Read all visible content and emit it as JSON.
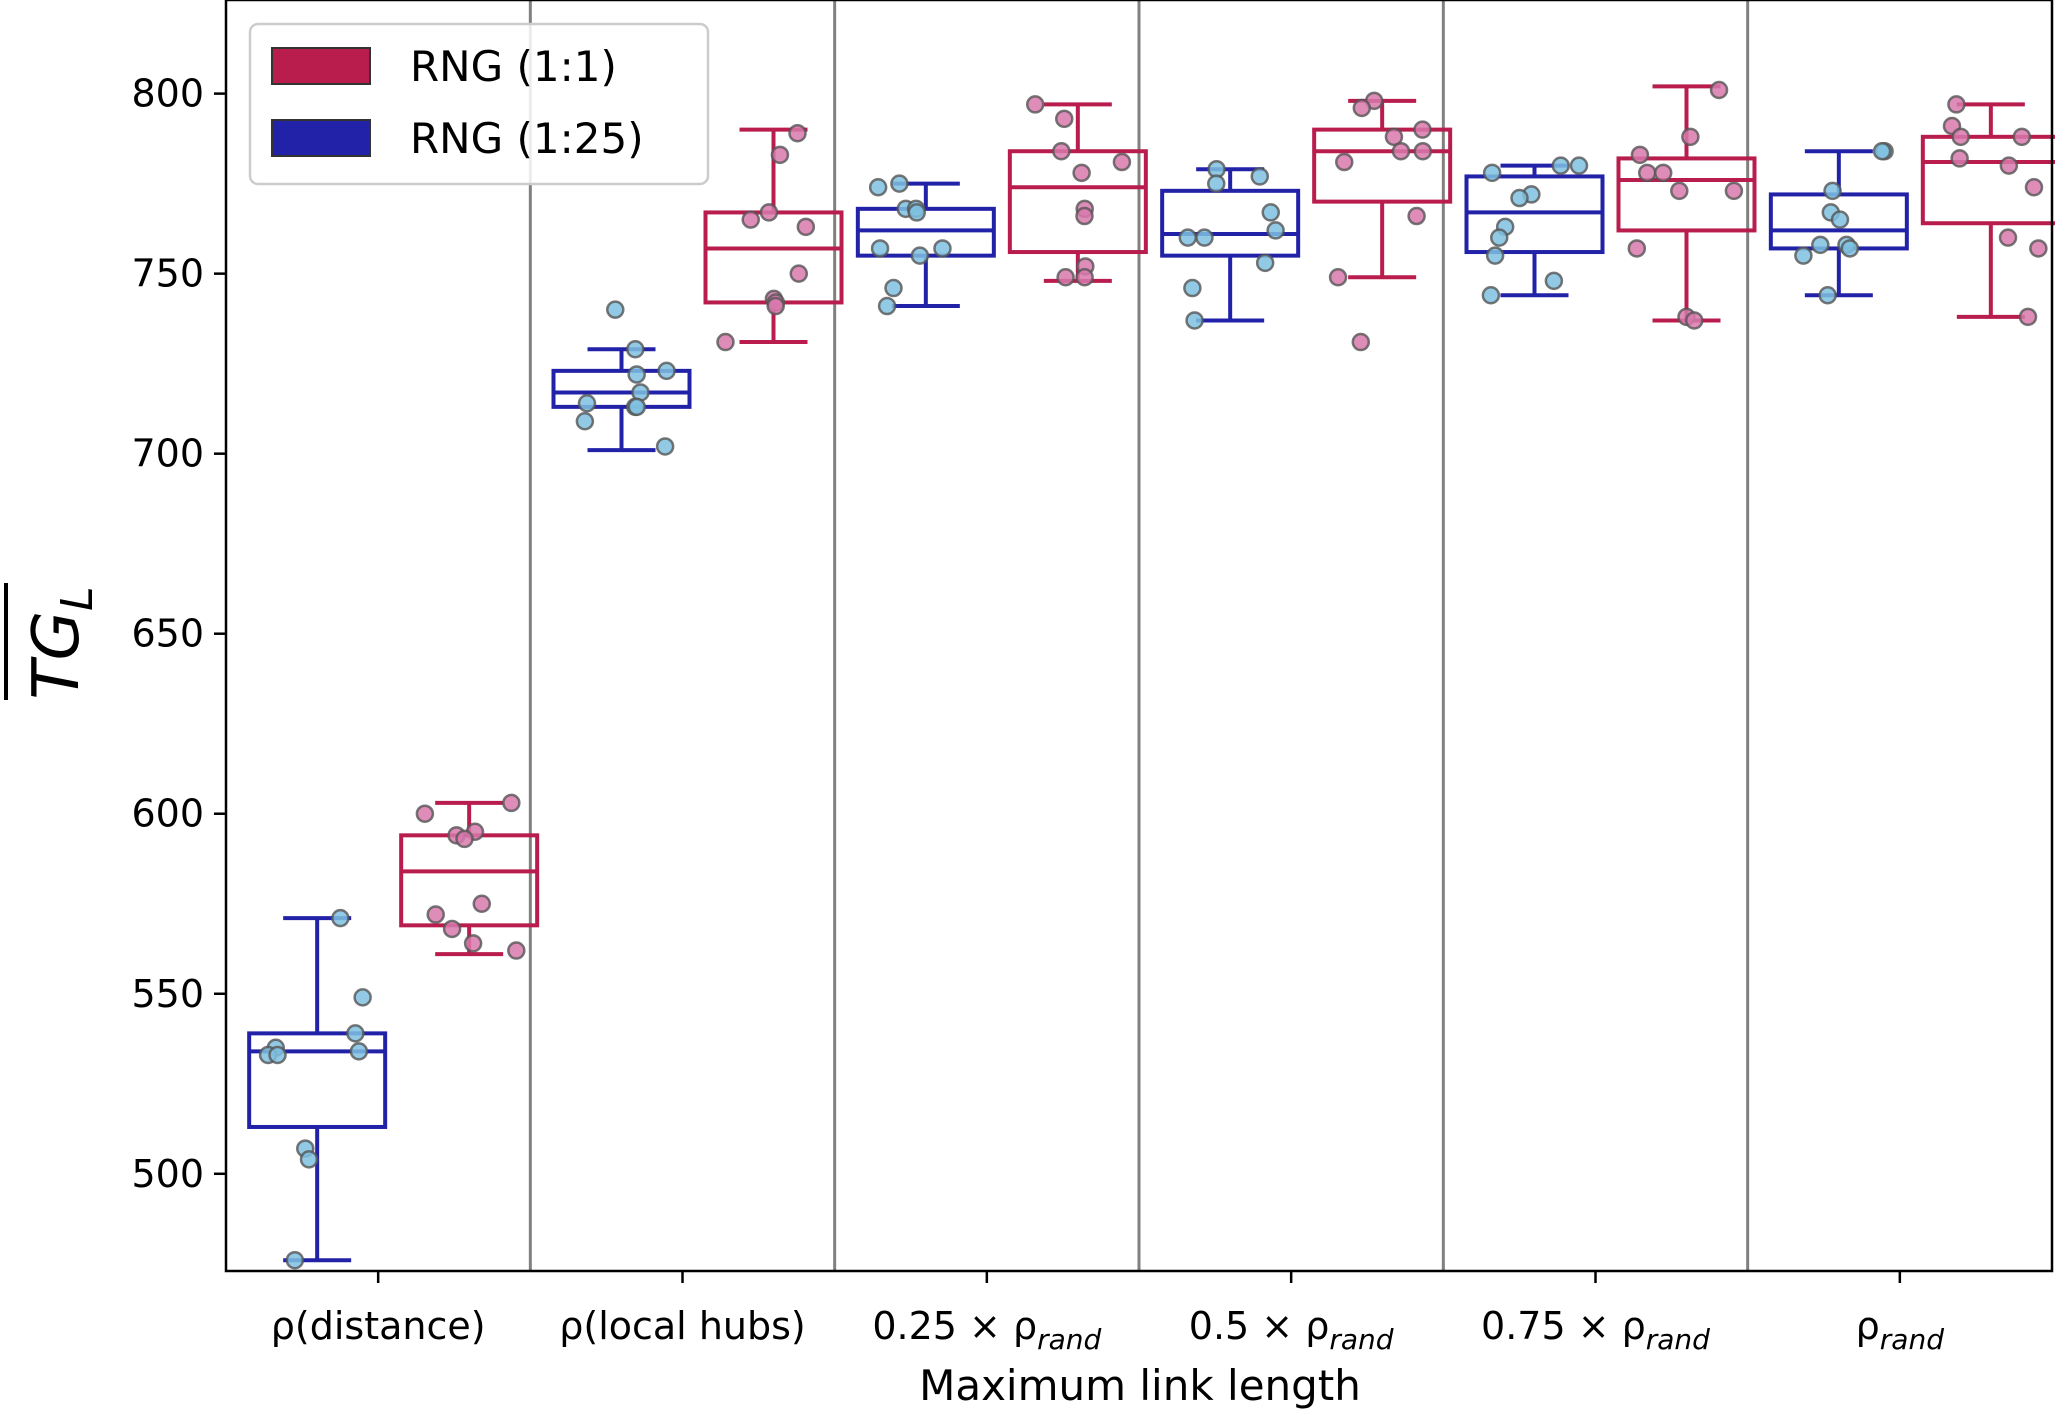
{
  "chart_data": {
    "type": "box",
    "title": "",
    "xlabel": "Maximum link length",
    "ylabel": "TG",
    "ylabel_subscript": "L",
    "ylim": [
      473,
      826
    ],
    "yticks": [
      500,
      550,
      600,
      650,
      700,
      750,
      800
    ],
    "grid": false,
    "legend_position": "top-left",
    "categories": [
      {
        "label": "ρ(distance)"
      },
      {
        "label": "ρ(local hubs)"
      },
      {
        "label": "0.25 × ρ",
        "subscript": "rand"
      },
      {
        "label": "0.5 × ρ",
        "subscript": "rand"
      },
      {
        "label": "0.75 × ρ",
        "subscript": "rand"
      },
      {
        "label": "ρ",
        "subscript": "rand"
      }
    ],
    "series": [
      {
        "name": "RNG (1:1)",
        "color": "#b81d4d",
        "point_color": "#d879ad",
        "boxes": [
          {
            "whisker_low": 561,
            "q1": 569,
            "median": 584,
            "q3": 594,
            "whisker_high": 603
          },
          {
            "whisker_low": 731,
            "q1": 742,
            "median": 757,
            "q3": 767,
            "whisker_high": 790
          },
          {
            "whisker_low": 748,
            "q1": 756,
            "median": 774,
            "q3": 784,
            "whisker_high": 797
          },
          {
            "whisker_low": 749,
            "q1": 770,
            "median": 784,
            "q3": 790,
            "whisker_high": 798
          },
          {
            "whisker_low": 737,
            "q1": 762,
            "median": 776,
            "q3": 782,
            "whisker_high": 802
          },
          {
            "whisker_low": 738,
            "q1": 764,
            "median": 781,
            "q3": 788,
            "whisker_high": 797
          }
        ],
        "points": [
          [
            603,
            600,
            595,
            594,
            593,
            575,
            572,
            568,
            564,
            562
          ],
          [
            789,
            783,
            767,
            765,
            763,
            750,
            743,
            742,
            741,
            731
          ],
          [
            797,
            793,
            784,
            781,
            778,
            768,
            766,
            752,
            749,
            749
          ],
          [
            798,
            796,
            790,
            788,
            784,
            784,
            781,
            766,
            749,
            731
          ],
          [
            801,
            788,
            783,
            778,
            778,
            773,
            773,
            757,
            738,
            737
          ],
          [
            797,
            791,
            788,
            788,
            782,
            780,
            774,
            760,
            757,
            738
          ]
        ]
      },
      {
        "name": "RNG (1:25)",
        "color": "#2222a8",
        "point_color": "#7fc1e0",
        "boxes": [
          {
            "whisker_low": 476,
            "q1": 513,
            "median": 534,
            "q3": 539,
            "whisker_high": 571
          },
          {
            "whisker_low": 701,
            "q1": 713,
            "median": 717,
            "q3": 723,
            "whisker_high": 729
          },
          {
            "whisker_low": 741,
            "q1": 755,
            "median": 762,
            "q3": 768,
            "whisker_high": 775
          },
          {
            "whisker_low": 737,
            "q1": 755,
            "median": 761,
            "q3": 773,
            "whisker_high": 779
          },
          {
            "whisker_low": 744,
            "q1": 756,
            "median": 767,
            "q3": 777,
            "whisker_high": 780
          },
          {
            "whisker_low": 744,
            "q1": 757,
            "median": 762,
            "q3": 772,
            "whisker_high": 784
          }
        ],
        "points": [
          [
            571,
            549,
            539,
            535,
            534,
            533,
            533,
            507,
            504,
            476
          ],
          [
            740,
            729,
            723,
            722,
            717,
            714,
            713,
            713,
            709,
            702
          ],
          [
            775,
            774,
            768,
            768,
            767,
            757,
            757,
            755,
            746,
            741
          ],
          [
            779,
            777,
            775,
            767,
            762,
            760,
            760,
            753,
            746,
            737
          ],
          [
            780,
            780,
            778,
            772,
            771,
            763,
            760,
            755,
            748,
            744
          ],
          [
            784,
            784,
            773,
            767,
            765,
            758,
            758,
            757,
            755,
            744
          ]
        ]
      }
    ]
  }
}
